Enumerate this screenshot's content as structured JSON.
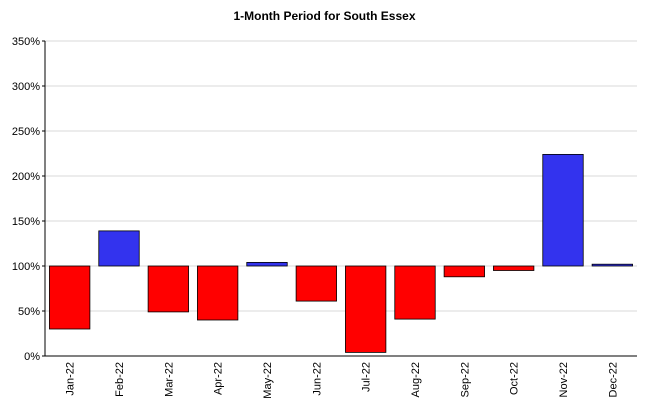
{
  "chart_data": {
    "type": "bar",
    "title": "1-Month Period for South Essex",
    "xlabel": "",
    "ylabel": "",
    "ylim": [
      0,
      350
    ],
    "y_unit": "%",
    "y_ticks": [
      "0%",
      "50%",
      "100%",
      "150%",
      "200%",
      "250%",
      "300%",
      "350%"
    ],
    "baseline": 100,
    "grid": true,
    "colors": {
      "above": "#3333ee",
      "below": "#ff0000",
      "outline": "#000000",
      "grid": "#d9d9d9"
    },
    "categories": [
      "Jan-22",
      "Feb-22",
      "Mar-22",
      "Apr-22",
      "May-22",
      "Jun-22",
      "Jul-22",
      "Aug-22",
      "Sep-22",
      "Oct-22",
      "Nov-22",
      "Dec-22"
    ],
    "values": [
      30,
      139,
      49,
      40,
      104,
      61,
      4,
      41,
      88,
      95,
      224,
      102
    ]
  }
}
